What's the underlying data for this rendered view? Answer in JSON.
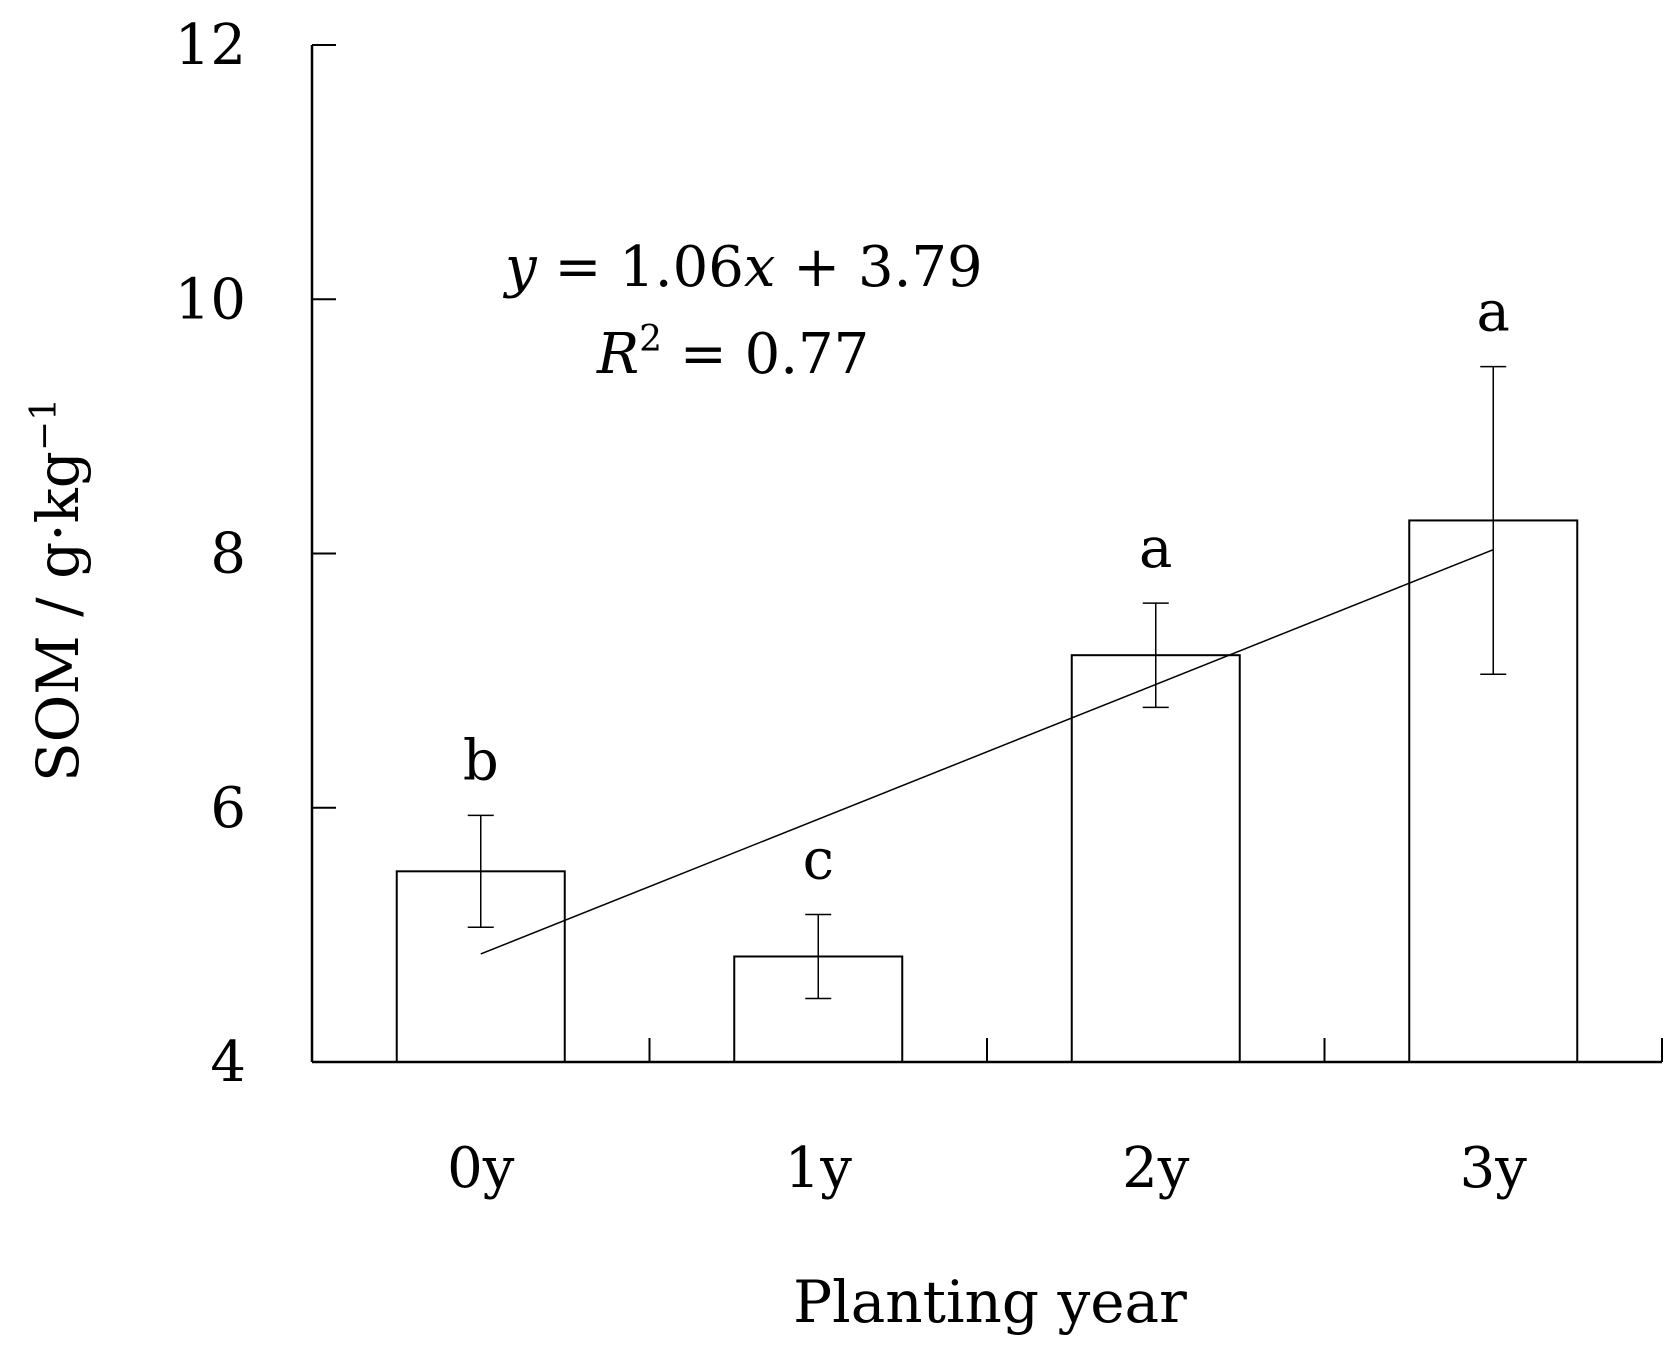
{
  "chart_data": {
    "type": "bar",
    "categories": [
      "0y",
      "1y",
      "2y",
      "3y"
    ],
    "values": [
      5.5,
      4.83,
      7.2,
      8.26
    ],
    "error": [
      0.44,
      0.33,
      0.41,
      1.21
    ],
    "significance": [
      "b",
      "c",
      "a",
      "a"
    ],
    "xlabel": "Planting year",
    "ylabel": {
      "main": "SOM / g·kg",
      "sup": "−1"
    },
    "ylim": [
      4,
      12
    ],
    "yticks": [
      "4",
      "6",
      "8",
      "10",
      "12"
    ],
    "trendline": {
      "slope": 1.06,
      "intercept": 3.79,
      "x_start": 1,
      "x_end": 4
    },
    "equation": {
      "y": "y",
      "eq1": " = 1.06",
      "x": "x",
      "eq2": " + 3.79"
    },
    "r2": {
      "r": "R",
      "sup": "2",
      "rest": " = 0.77"
    },
    "grid": false,
    "legend": "none",
    "colors": {
      "bar_fill": "#ffffff",
      "stroke": "#000000"
    }
  }
}
